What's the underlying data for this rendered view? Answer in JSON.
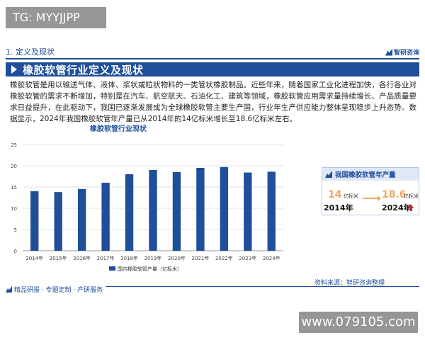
{
  "overlay": {
    "tg_label": "TG: MYYJJPP",
    "url_label": "www.079105.com"
  },
  "header": {
    "section_label": "1. 定义及现状",
    "logo_label": "智研咨询"
  },
  "banner": {
    "title": "橡胶软管行业定义及现状"
  },
  "body": {
    "paragraph": "橡胶软管是用以输送气体、液体、浆状或粒状物料的一类管状橡胶制品。近些年来，随着国家工业化进程加快，各行各业对橡胶软管的需求不断增加，特别是在汽车、航空航天、石油化工、建筑等领域，橡胶软管应用需求量持续增长、产品质量要求日益提升，在此驱动下，我国已逐渐发展成为全球橡胶软管主要生产国，行业年生产供应能力整体呈现稳步上升态势。数据显示，2024年我国橡胶软管年产量已从2014年的14亿标米增长至18.6亿标米左右。"
  },
  "card": {
    "title": "我国橡胶软管年产量",
    "from_value": "14",
    "from_unit": "亿标米",
    "from_year": "2014年",
    "to_value": "18.6",
    "to_unit": "亿标米",
    "to_year": "2024年",
    "from_color": "#f2a663",
    "to_color": "#f2a663"
  },
  "footer": {
    "left_label": "精品研报 · 专题定制 · 产研服务",
    "source": "资料来源：智研咨询整理"
  },
  "colors": {
    "accent": "#1f4e9a",
    "bar": "#1f4e9a"
  },
  "chart_data": {
    "type": "bar",
    "title": "橡胶软管行业现状",
    "categories": [
      "2014年",
      "2015年",
      "2016年",
      "2017年",
      "2018年",
      "2019年",
      "2020年",
      "2021年",
      "2022年",
      "2023年",
      "2024年"
    ],
    "series": [
      {
        "name": "国内橡胶软管产量（亿标米）",
        "values": [
          14.0,
          13.8,
          14.5,
          16.0,
          18.0,
          19.0,
          18.5,
          19.5,
          19.7,
          18.4,
          18.6
        ]
      }
    ],
    "xlabel": "",
    "ylabel": "",
    "ylim": [
      0,
      25
    ],
    "yticks": [
      0,
      5,
      10,
      15,
      20,
      25
    ],
    "grid": true,
    "legend": "bottom"
  }
}
